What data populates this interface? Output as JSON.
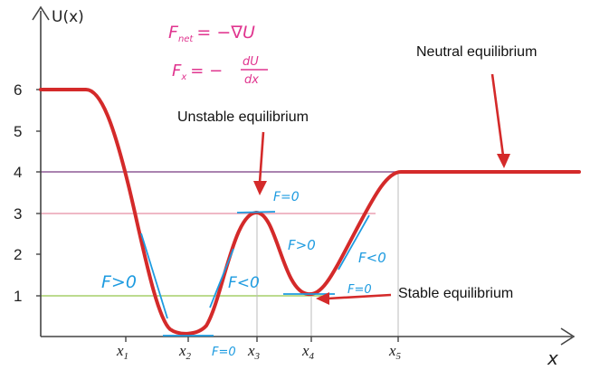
{
  "axes": {
    "y_label": "U(x)",
    "x_label": "x",
    "y_ticks": [
      "1",
      "2",
      "3",
      "4",
      "5",
      "6"
    ],
    "x_ticks": [
      {
        "main": "x",
        "sub": "1"
      },
      {
        "main": "x",
        "sub": "2"
      },
      {
        "main": "x",
        "sub": "3"
      },
      {
        "main": "x",
        "sub": "4"
      },
      {
        "main": "x",
        "sub": "5"
      }
    ]
  },
  "formulas": {
    "f1_lhs": "F",
    "f1_sub": "net",
    "f1_rhs": "= −∇U",
    "f2_lhs": "F",
    "f2_sub": "x",
    "f2_eq": "= −",
    "f2_num": "dU",
    "f2_den": "dx"
  },
  "annotations": {
    "neutral": "Neutral equilibrium",
    "unstable": "Unstable equilibrium",
    "stable": "Stable equilibrium"
  },
  "handwritten": {
    "f_gt0_left": "F>0",
    "f_eq0_x2": "F=0",
    "f_lt0_rise": "F<0",
    "f_eq0_x3": "F=0",
    "f_gt0_fall": "F>0",
    "f_eq0_x4": "F=0",
    "f_lt0_right": "F<0"
  },
  "colors": {
    "curve": "#d42a2a",
    "level4": "#8e5a96",
    "level3": "#eaa0b4",
    "level1": "#a6cf6a",
    "hand_blue": "#1e9be0",
    "hand_pink": "#e0358f",
    "arrow": "#d42a2a"
  }
}
